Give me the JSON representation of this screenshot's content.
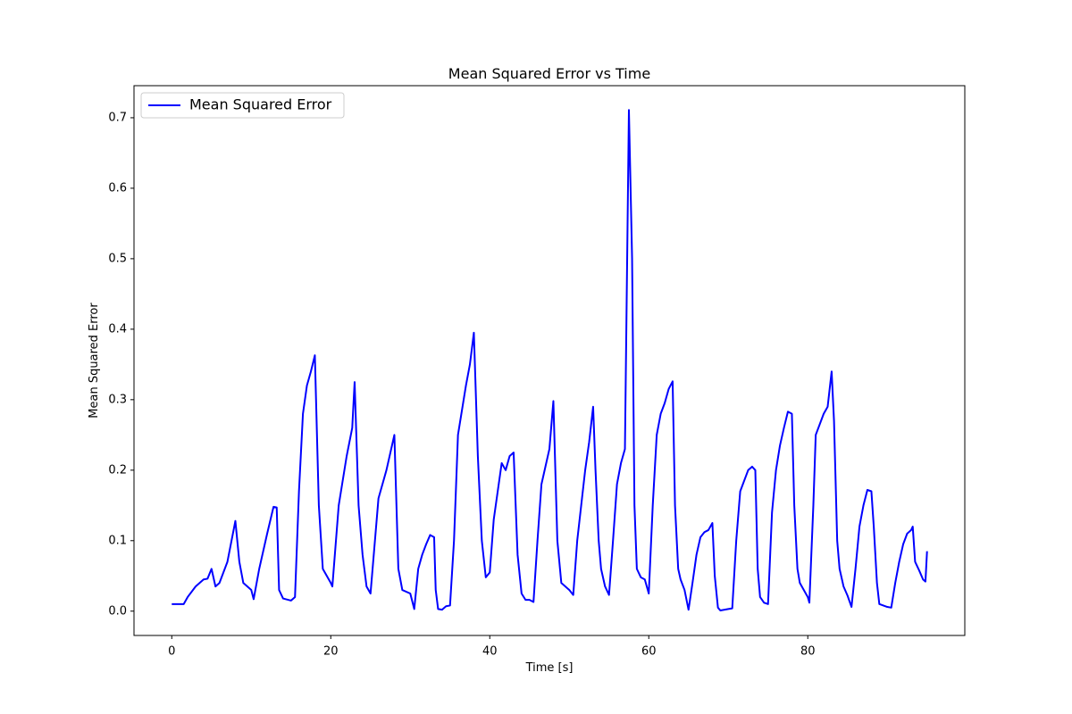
{
  "chart_data": {
    "type": "line",
    "title": "Mean Squared Error vs Time",
    "x_label": "Time [s]",
    "y_label": "Mean Squared Error",
    "x": [
      0,
      1.5,
      2,
      3,
      4,
      4.5,
      5,
      5.5,
      6,
      7,
      8,
      8.5,
      9,
      10,
      10.3,
      11,
      12,
      12.8,
      13.2,
      13.5,
      14,
      15,
      15.5,
      16,
      16.5,
      17,
      17.5,
      18,
      18.5,
      19,
      20,
      20.2,
      21,
      22,
      22.7,
      23,
      23.5,
      24,
      24.5,
      25,
      26,
      27,
      28,
      28.5,
      29,
      30,
      30.5,
      31,
      31.5,
      32,
      32.5,
      33,
      33.2,
      33.5,
      34,
      34.5,
      35,
      35.5,
      36,
      37,
      37.5,
      38,
      38.5,
      39,
      39.5,
      40,
      40.5,
      41.5,
      42,
      42.5,
      43,
      43.5,
      44,
      44.5,
      45,
      45.5,
      46,
      46.5,
      47,
      47.5,
      48,
      48.5,
      49,
      50,
      50.5,
      51,
      51.5,
      52,
      52.5,
      53,
      53.3,
      53.7,
      54,
      54.5,
      55,
      55.5,
      56,
      56.5,
      57,
      57.5,
      57.9,
      58.2,
      58.5,
      59,
      59.5,
      60,
      60.5,
      61,
      61.5,
      62,
      62.5,
      63,
      63.3,
      63.7,
      64,
      64.5,
      65,
      65.5,
      66,
      66.5,
      67,
      67.5,
      68,
      68.3,
      68.7,
      69,
      70,
      70.5,
      71,
      71.5,
      72,
      72.5,
      73,
      73.4,
      73.7,
      74,
      74.5,
      75,
      75.5,
      76,
      76.5,
      77,
      77.5,
      78,
      78.3,
      78.7,
      79,
      80,
      80.2,
      80.7,
      81,
      81.5,
      82,
      82.5,
      83,
      83.3,
      83.7,
      84,
      84.5,
      85,
      85.5,
      86,
      86.5,
      87,
      87.5,
      88,
      88.3,
      88.7,
      89,
      90,
      90.5,
      91,
      91.5,
      92,
      92.5,
      93,
      93.2,
      93.5,
      94,
      94.5,
      94.8,
      95
    ],
    "series": [
      {
        "name": "Mean Squared Error",
        "color": "#0000ff",
        "values": [
          0.01,
          0.01,
          0.02,
          0.035,
          0.045,
          0.046,
          0.06,
          0.035,
          0.04,
          0.07,
          0.128,
          0.07,
          0.04,
          0.03,
          0.017,
          0.06,
          0.11,
          0.148,
          0.147,
          0.03,
          0.018,
          0.015,
          0.02,
          0.17,
          0.28,
          0.32,
          0.34,
          0.363,
          0.15,
          0.06,
          0.04,
          0.035,
          0.15,
          0.22,
          0.26,
          0.325,
          0.15,
          0.08,
          0.035,
          0.025,
          0.16,
          0.2,
          0.25,
          0.06,
          0.03,
          0.025,
          0.003,
          0.06,
          0.08,
          0.095,
          0.108,
          0.105,
          0.03,
          0.003,
          0.002,
          0.007,
          0.008,
          0.1,
          0.25,
          0.32,
          0.35,
          0.395,
          0.22,
          0.1,
          0.048,
          0.055,
          0.13,
          0.21,
          0.2,
          0.22,
          0.225,
          0.08,
          0.025,
          0.016,
          0.016,
          0.013,
          0.1,
          0.18,
          0.205,
          0.23,
          0.298,
          0.1,
          0.04,
          0.03,
          0.023,
          0.1,
          0.15,
          0.2,
          0.24,
          0.29,
          0.2,
          0.1,
          0.06,
          0.035,
          0.023,
          0.1,
          0.18,
          0.21,
          0.23,
          0.711,
          0.5,
          0.15,
          0.06,
          0.048,
          0.045,
          0.025,
          0.15,
          0.25,
          0.28,
          0.295,
          0.315,
          0.326,
          0.15,
          0.06,
          0.045,
          0.03,
          0.002,
          0.04,
          0.08,
          0.105,
          0.112,
          0.115,
          0.125,
          0.05,
          0.005,
          0.001,
          0.003,
          0.004,
          0.1,
          0.17,
          0.185,
          0.2,
          0.205,
          0.2,
          0.06,
          0.02,
          0.012,
          0.01,
          0.14,
          0.2,
          0.235,
          0.26,
          0.283,
          0.28,
          0.15,
          0.06,
          0.04,
          0.02,
          0.012,
          0.15,
          0.25,
          0.265,
          0.28,
          0.29,
          0.34,
          0.27,
          0.1,
          0.06,
          0.035,
          0.022,
          0.006,
          0.06,
          0.12,
          0.15,
          0.172,
          0.17,
          0.12,
          0.04,
          0.01,
          0.006,
          0.005,
          0.04,
          0.07,
          0.095,
          0.11,
          0.115,
          0.12,
          0.07,
          0.058,
          0.045,
          0.042,
          0.085
        ]
      }
    ],
    "xlim": [
      -4.75,
      99.75
    ],
    "xticks": [
      0,
      20,
      40,
      60,
      80
    ],
    "ylim": [
      -0.0345,
      0.7455
    ],
    "yticks": [
      {
        "value": 0,
        "label": "0.0"
      },
      0.1,
      0.2,
      0.3,
      0.4,
      0.5,
      0.6,
      0.7
    ],
    "legend": "upper left"
  }
}
